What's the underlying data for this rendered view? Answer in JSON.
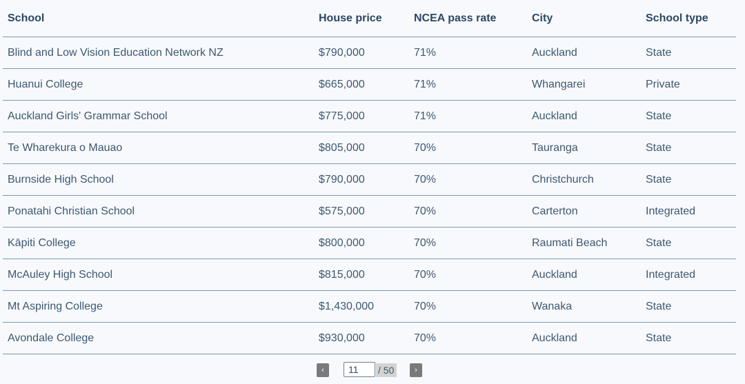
{
  "table": {
    "columns": [
      "School",
      "House price",
      "NCEA pass rate",
      "City",
      "School type"
    ],
    "rows": [
      [
        "Blind and Low Vision Education Network NZ",
        "$790,000",
        "71%",
        "Auckland",
        "State"
      ],
      [
        "Huanui College",
        "$665,000",
        "71%",
        "Whangarei",
        "Private"
      ],
      [
        "Auckland Girls' Grammar School",
        "$775,000",
        "71%",
        "Auckland",
        "State"
      ],
      [
        "Te Wharekura o Mauao",
        "$805,000",
        "70%",
        "Tauranga",
        "State"
      ],
      [
        "Burnside High School",
        "$790,000",
        "70%",
        "Christchurch",
        "State"
      ],
      [
        "Ponatahi Christian School",
        "$575,000",
        "70%",
        "Carterton",
        "Integrated"
      ],
      [
        "Kāpiti College",
        "$800,000",
        "70%",
        "Raumati Beach",
        "State"
      ],
      [
        "McAuley High School",
        "$815,000",
        "70%",
        "Auckland",
        "Integrated"
      ],
      [
        "Mt Aspiring College",
        "$1,430,000",
        "70%",
        "Wanaka",
        "State"
      ],
      [
        "Avondale College",
        "$930,000",
        "70%",
        "Auckland",
        "State"
      ]
    ]
  },
  "pagination": {
    "prev_icon": "‹",
    "next_icon": "›",
    "current_page": "11",
    "total_label": "/ 50"
  },
  "colors": {
    "text": "#3e5870",
    "header_text": "#2c4763",
    "row_border": "#7f98ad",
    "background": "#f7f9fc",
    "pager_button": "#7a7a7a"
  }
}
